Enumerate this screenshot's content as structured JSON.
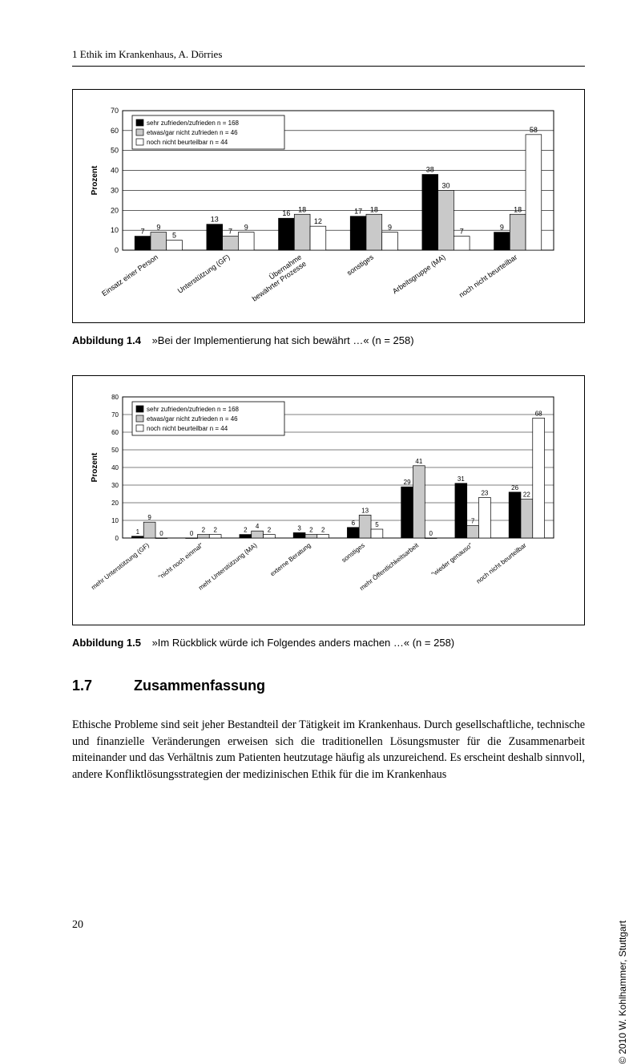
{
  "header": {
    "text": "1  Ethik im Krankenhaus, A. Dörries"
  },
  "chart1": {
    "type": "bar",
    "y_label": "Prozent",
    "y_label_fontsize": 10,
    "ylim": [
      0,
      70
    ],
    "ytick_step": 10,
    "yticks": [
      0,
      10,
      20,
      30,
      40,
      50,
      60,
      70
    ],
    "legend": {
      "entries": [
        {
          "label": "sehr zufrieden/zufrieden n = 168",
          "fill": "#000000"
        },
        {
          "label": "etwas/gar nicht zufrieden n = 46",
          "fill": "#c9c9c9"
        },
        {
          "label": "noch nicht beurteilbar n = 44",
          "fill": "#ffffff"
        }
      ],
      "box_stroke": "#000000",
      "font_size": 8
    },
    "categories": [
      "Einsatz einer Person",
      "Unterstützung (GF)",
      "Übernahme\nbewährter Prozesse",
      "sonstiges",
      "Arbeitsgruppe (MA)",
      "noch nicht beurteilbar"
    ],
    "series": [
      {
        "name": "sehr zufrieden/zufrieden",
        "fill": "#000000",
        "values": [
          7,
          13,
          16,
          17,
          38,
          9
        ]
      },
      {
        "name": "etwas/gar nicht zufrieden",
        "fill": "#c9c9c9",
        "values": [
          9,
          7,
          18,
          18,
          30,
          18
        ]
      },
      {
        "name": "noch nicht beurteilbar",
        "fill": "#ffffff",
        "values": [
          5,
          9,
          12,
          9,
          7,
          58
        ]
      }
    ],
    "bar_stroke": "#000000",
    "bar_width": 0.22,
    "group_gap": 0.34,
    "grid_color": "#000000",
    "background": "#ffffff",
    "label_font_size": 9,
    "value_label_font_size": 9,
    "xlabel_rotation_deg": 35
  },
  "caption1": {
    "number": "Abbildung 1.4",
    "text": "»Bei der Implementierung hat sich bewährt …« (n = 258)"
  },
  "chart2": {
    "type": "bar",
    "y_label": "Prozent",
    "y_label_fontsize": 10,
    "ylim": [
      0,
      80
    ],
    "ytick_step": 10,
    "yticks": [
      0,
      10,
      20,
      30,
      40,
      50,
      60,
      70,
      80
    ],
    "legend": {
      "entries": [
        {
          "label": "sehr zufrieden/zufrieden n = 168",
          "fill": "#000000"
        },
        {
          "label": "etwas/gar nicht zufrieden n = 46",
          "fill": "#c9c9c9"
        },
        {
          "label": "noch nicht beurteilbar n = 44",
          "fill": "#ffffff"
        }
      ],
      "box_stroke": "#000000",
      "font_size": 8
    },
    "categories": [
      "mehr Unterstützung (GF)",
      "\"nicht noch einmal\"",
      "mehr Unterstützung (MA)",
      "externe Beratung",
      "sonstiges",
      "mehr Öffentlichkeitsarbeit",
      "\"wieder genauso\"",
      "noch nicht beurteilbar"
    ],
    "series": [
      {
        "name": "sehr zufrieden/zufrieden",
        "fill": "#000000",
        "values": [
          1,
          0,
          2,
          3,
          6,
          29,
          31,
          26
        ]
      },
      {
        "name": "etwas/gar nicht zufrieden",
        "fill": "#c9c9c9",
        "values": [
          9,
          2,
          4,
          2,
          13,
          41,
          7,
          22
        ]
      },
      {
        "name": "noch nicht beurteilbar",
        "fill": "#ffffff",
        "values": [
          0,
          2,
          2,
          2,
          5,
          0,
          23,
          68
        ]
      }
    ],
    "bar_stroke": "#000000",
    "bar_width": 0.22,
    "group_gap": 0.34,
    "grid_color": "#000000",
    "background": "#ffffff",
    "label_font_size": 8,
    "value_label_font_size": 8,
    "xlabel_rotation_deg": 38
  },
  "caption2": {
    "number": "Abbildung 1.5",
    "text": "»Im Rückblick würde ich Folgendes anders machen …« (n = 258)"
  },
  "section": {
    "number": "1.7",
    "title": "Zusammenfassung"
  },
  "body": {
    "paragraph": "Ethische Probleme sind seit jeher Bestandteil der Tätigkeit im Krankenhaus. Durch gesellschaftliche, technische und finanzielle Veränderungen erweisen sich die traditionellen Lösungsmuster für die Zusammenarbeit miteinander und das Verhältnis zum Patienten heutzutage häufig als unzureichend. Es erscheint deshalb sinnvoll, andere Konfliktlösungsstrategien der medizinischen Ethik für die im Krankenhaus"
  },
  "page_number": "20",
  "copyright": "© 2010 W. Kohlhammer, Stuttgart"
}
